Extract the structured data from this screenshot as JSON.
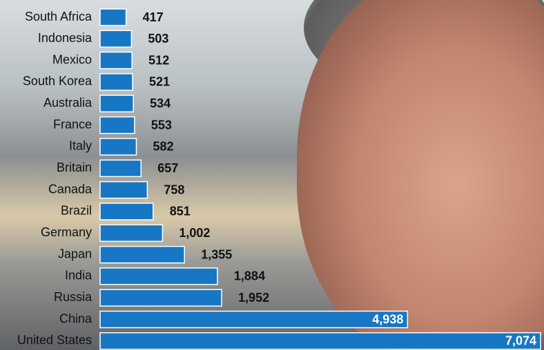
{
  "chart_data": {
    "type": "bar",
    "orientation": "horizontal",
    "categories": [
      "South Africa",
      "Indonesia",
      "Mexico",
      "South Korea",
      "Australia",
      "France",
      "Italy",
      "Britain",
      "Canada",
      "Brazil",
      "Germany",
      "Japan",
      "India",
      "Russia",
      "China",
      "United States"
    ],
    "values": [
      417,
      503,
      512,
      521,
      534,
      553,
      582,
      657,
      758,
      851,
      1002,
      1355,
      1884,
      1952,
      4938,
      7074
    ],
    "value_labels": [
      "417",
      "503",
      "512",
      "521",
      "534",
      "553",
      "582",
      "657",
      "758",
      "851",
      "1,002",
      "1,355",
      "1,884",
      "1,952",
      "4,938",
      "7,074"
    ],
    "color": "#1877c4"
  }
}
